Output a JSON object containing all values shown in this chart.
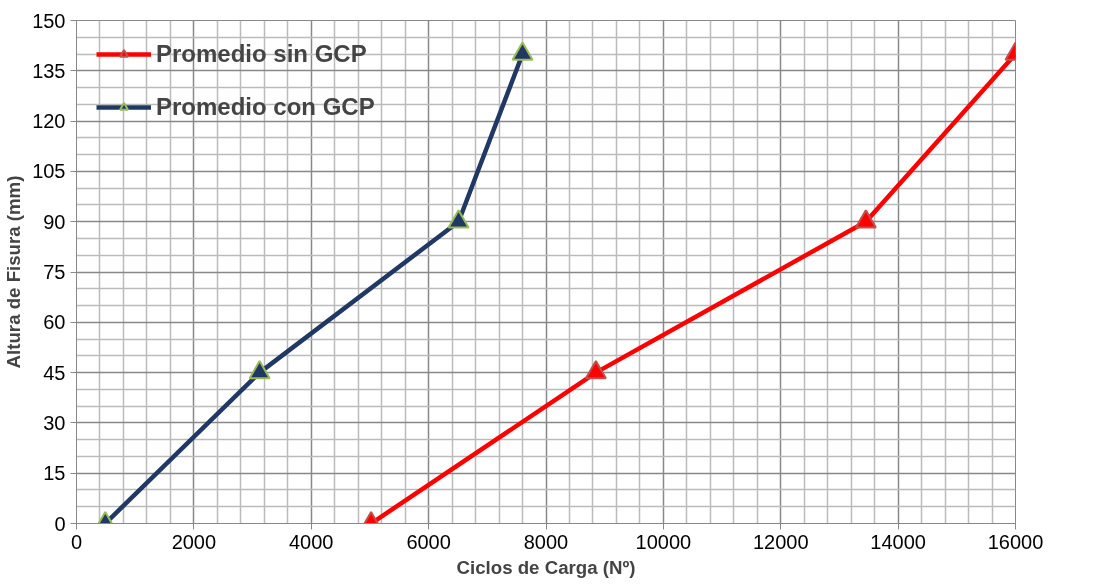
{
  "chart_data": {
    "type": "line",
    "xlabel": "Ciclos de Carga (Nº)",
    "ylabel": "Altura de Fisura (mm)",
    "xlim": [
      0,
      16000
    ],
    "xticks": [
      0,
      2000,
      4000,
      6000,
      8000,
      10000,
      12000,
      14000,
      16000
    ],
    "ylim": [
      0,
      150
    ],
    "yticks": [
      0,
      15,
      30,
      45,
      60,
      75,
      90,
      105,
      120,
      135,
      150
    ],
    "grid": true,
    "legend": "top left",
    "marker": "triangle",
    "line_style": "solid",
    "series": [
      {
        "name": "Promedio sin GCP",
        "color": "#ff0000",
        "x": [
          5020,
          8850,
          13450,
          16000
        ],
        "values": [
          0,
          45,
          90,
          140
        ]
      },
      {
        "name": "Promedio con GCP",
        "color": "#1f3864",
        "x": [
          490,
          3120,
          6510,
          7600
        ],
        "values": [
          0,
          45,
          90,
          140
        ]
      }
    ]
  }
}
